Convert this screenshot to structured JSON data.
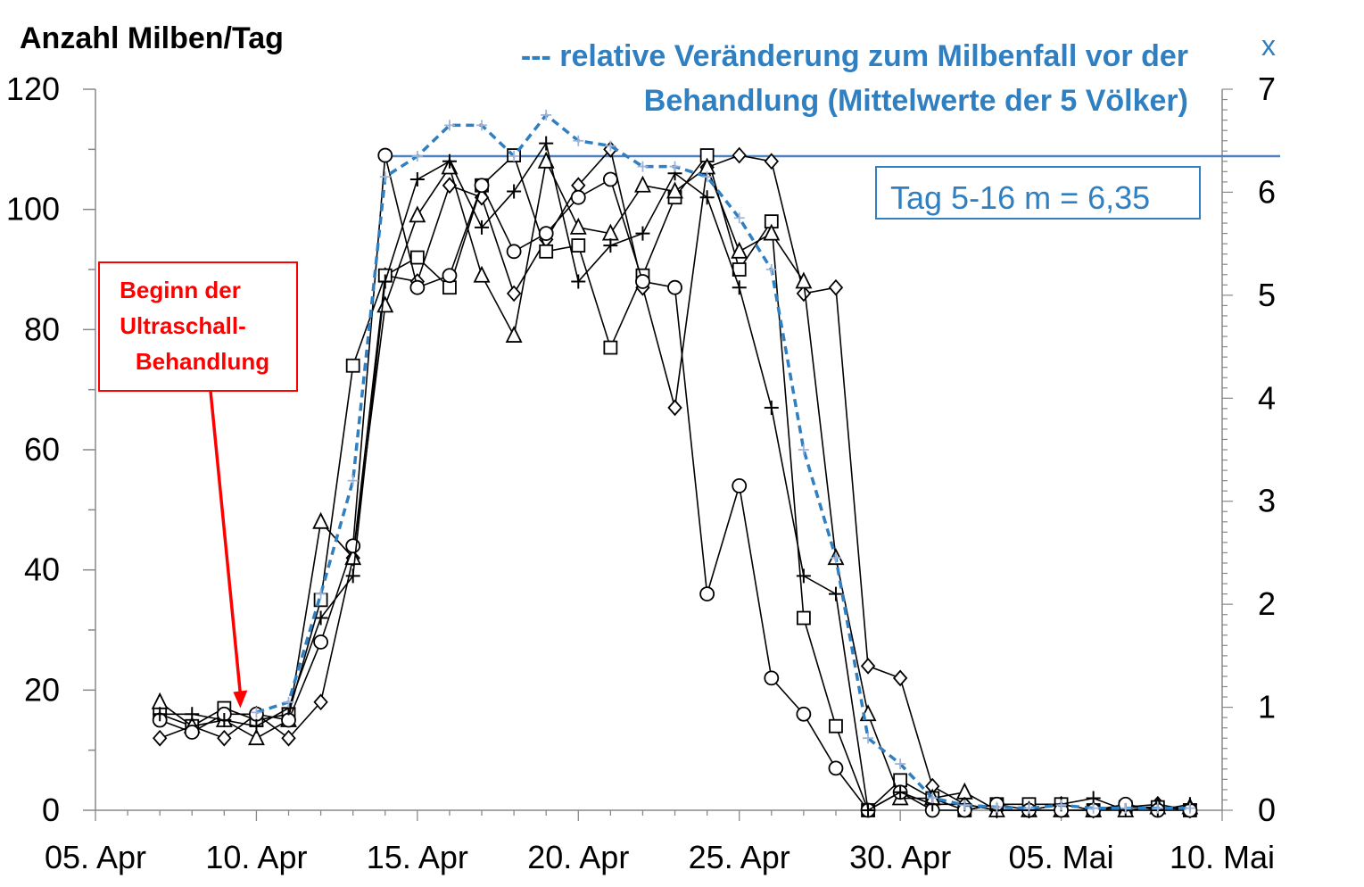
{
  "chart_data": {
    "type": "line",
    "left_axis_title": "Anzahl Milben/Tag",
    "right_axis_title": "x",
    "right_axis_note": [
      "--- relative Veränderung zum Milbenfall vor der",
      "Behandlung (Mittelwerte der 5 Völker)"
    ],
    "x_tick_labels": [
      "05. Apr",
      "10. Apr",
      "15. Apr",
      "20. Apr",
      "25. Apr",
      "30. Apr",
      "05. Mai",
      "10. Mai"
    ],
    "xlim_day_of_april": [
      5,
      40
    ],
    "ylim_left": [
      0,
      120
    ],
    "y_ticks_left": [
      0,
      20,
      40,
      60,
      80,
      100,
      120
    ],
    "ylim_right": [
      0,
      7
    ],
    "y_ticks_right": [
      0,
      1,
      2,
      3,
      4,
      5,
      6,
      7
    ],
    "reference_line": {
      "axis": "right",
      "value": 6.35,
      "from_day": 14
    },
    "reference_label": "Tag 5-16 m = 6,35",
    "annotation": {
      "lines": [
        "Beginn der",
        "Ultraschall-",
        "Behandlung"
      ],
      "arrow_to_day": 9.5,
      "arrow_to_value": 17
    },
    "colors": {
      "series": "#000000",
      "mean": "#2f7fc1",
      "annotation": "#ff0000",
      "reference": "#4f81bd"
    },
    "x_day_of_april": [
      7,
      8,
      9,
      10,
      11,
      12,
      13,
      14,
      15,
      16,
      17,
      18,
      19,
      20,
      21,
      22,
      23,
      24,
      25,
      26,
      27,
      28,
      29,
      30,
      31,
      32,
      33,
      34,
      35,
      36,
      37,
      38,
      39
    ],
    "series": [
      {
        "marker": "diamond",
        "axis": "left",
        "values": [
          12,
          14,
          12,
          16,
          12,
          18,
          42,
          89,
          88,
          104,
          102,
          86,
          95,
          104,
          110,
          87,
          67,
          107,
          109,
          108,
          86,
          87,
          24,
          22,
          4,
          1,
          0,
          0,
          1,
          0,
          0.5,
          1,
          0
        ]
      },
      {
        "marker": "square",
        "axis": "left",
        "values": [
          16,
          14,
          17,
          15,
          16,
          35,
          74,
          89,
          92,
          87,
          104,
          109,
          93,
          94,
          77,
          89,
          102,
          109,
          90,
          98,
          32,
          14,
          0,
          5,
          2,
          0,
          1,
          1,
          1,
          0,
          0.5,
          0.5,
          0
        ]
      },
      {
        "marker": "triangle",
        "axis": "left",
        "values": [
          18,
          14,
          15,
          12,
          15,
          48,
          42,
          84,
          99,
          107,
          89,
          79,
          108,
          97,
          96,
          104,
          103,
          107,
          93,
          96,
          88,
          42,
          16,
          2,
          2,
          3,
          0,
          0,
          0,
          0,
          0,
          0.5,
          0.5
        ]
      },
      {
        "marker": "circle",
        "axis": "left",
        "values": [
          15,
          13,
          16,
          16,
          15,
          28,
          44,
          109,
          87,
          89,
          104,
          93,
          96,
          102,
          105,
          88,
          87,
          36,
          54,
          22,
          16,
          7,
          0,
          3,
          0,
          0,
          1,
          0,
          0,
          0,
          1,
          0,
          0
        ]
      },
      {
        "marker": "plus",
        "axis": "left",
        "values": [
          16,
          16,
          15,
          14,
          17,
          32,
          39,
          88,
          105,
          108,
          97,
          103,
          111,
          88,
          94,
          96,
          106,
          102,
          87,
          67,
          39,
          36,
          0,
          3,
          1,
          1,
          0,
          0,
          1,
          2,
          0,
          0,
          1
        ]
      },
      {
        "name": "relative Veränderung zum Milbenfall vor der Behandlung (Mittelwerte der 5 Völker)",
        "marker": "plus",
        "axis": "right",
        "dashed": true,
        "values": [
          null,
          null,
          null,
          0.95,
          1.05,
          2.1,
          3.2,
          6.15,
          6.35,
          6.65,
          6.65,
          6.35,
          6.75,
          6.5,
          6.45,
          6.25,
          6.25,
          6.15,
          5.75,
          5.25,
          3.5,
          2.45,
          0.7,
          0.45,
          0.12,
          0.05,
          0.03,
          0.02,
          0.05,
          0.02,
          0.02,
          0.02,
          0.02
        ]
      }
    ]
  }
}
